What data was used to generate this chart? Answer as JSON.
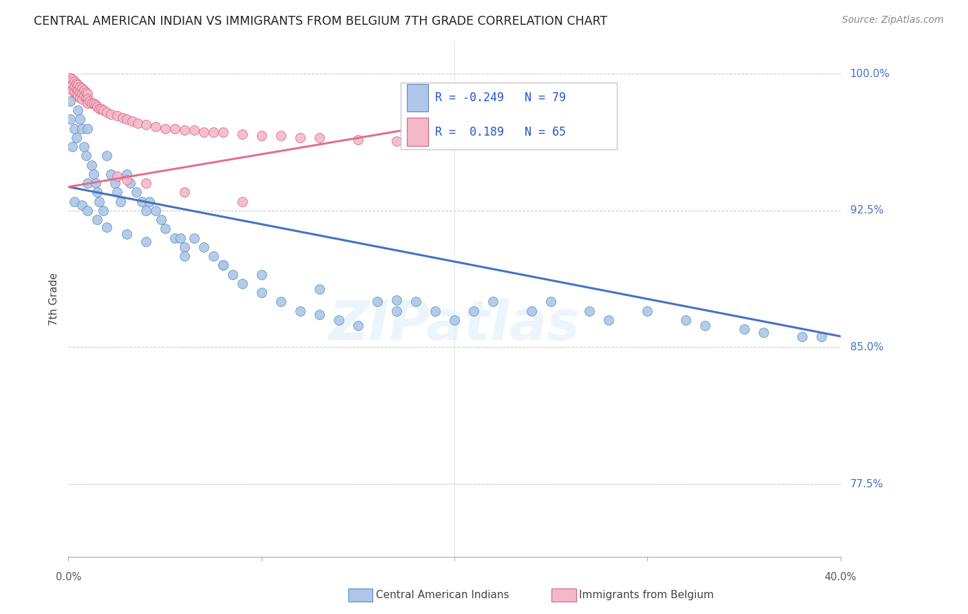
{
  "title": "CENTRAL AMERICAN INDIAN VS IMMIGRANTS FROM BELGIUM 7TH GRADE CORRELATION CHART",
  "source": "Source: ZipAtlas.com",
  "ylabel": "7th Grade",
  "ytick_labels": [
    "100.0%",
    "92.5%",
    "85.0%",
    "77.5%"
  ],
  "ytick_values": [
    1.0,
    0.925,
    0.85,
    0.775
  ],
  "legend_blue_label": "Central American Indians",
  "legend_pink_label": "Immigrants from Belgium",
  "R_blue": -0.249,
  "N_blue": 79,
  "R_pink": 0.189,
  "N_pink": 65,
  "blue_color": "#aec6e8",
  "pink_color": "#f4b8c8",
  "blue_edge_color": "#5b8db8",
  "pink_edge_color": "#d46080",
  "blue_line_color": "#4472c4",
  "pink_line_color": "#e07090",
  "watermark": "ZIPatlas",
  "xmin": 0.0,
  "xmax": 0.4,
  "ymin": 0.735,
  "ymax": 1.018,
  "blue_trendline_x": [
    0.0,
    0.4
  ],
  "blue_trendline_y": [
    0.938,
    0.856
  ],
  "pink_trendline_x": [
    0.0,
    0.19
  ],
  "pink_trendline_y": [
    0.938,
    0.972
  ],
  "blue_scatter_x": [
    0.001,
    0.001,
    0.002,
    0.002,
    0.003,
    0.003,
    0.004,
    0.005,
    0.006,
    0.007,
    0.008,
    0.009,
    0.01,
    0.01,
    0.012,
    0.013,
    0.014,
    0.015,
    0.016,
    0.018,
    0.02,
    0.022,
    0.024,
    0.025,
    0.027,
    0.03,
    0.032,
    0.035,
    0.038,
    0.04,
    0.042,
    0.045,
    0.048,
    0.05,
    0.055,
    0.058,
    0.06,
    0.065,
    0.07,
    0.075,
    0.08,
    0.085,
    0.09,
    0.1,
    0.11,
    0.12,
    0.13,
    0.14,
    0.15,
    0.16,
    0.17,
    0.18,
    0.19,
    0.2,
    0.22,
    0.24,
    0.25,
    0.27,
    0.3,
    0.32,
    0.33,
    0.35,
    0.36,
    0.38,
    0.39,
    0.003,
    0.007,
    0.01,
    0.015,
    0.02,
    0.03,
    0.04,
    0.06,
    0.08,
    0.1,
    0.13,
    0.17,
    0.21,
    0.28
  ],
  "blue_scatter_y": [
    0.985,
    0.975,
    0.995,
    0.96,
    0.99,
    0.97,
    0.965,
    0.98,
    0.975,
    0.97,
    0.96,
    0.955,
    0.97,
    0.94,
    0.95,
    0.945,
    0.94,
    0.935,
    0.93,
    0.925,
    0.955,
    0.945,
    0.94,
    0.935,
    0.93,
    0.945,
    0.94,
    0.935,
    0.93,
    0.925,
    0.93,
    0.925,
    0.92,
    0.915,
    0.91,
    0.91,
    0.905,
    0.91,
    0.905,
    0.9,
    0.895,
    0.89,
    0.885,
    0.88,
    0.875,
    0.87,
    0.868,
    0.865,
    0.862,
    0.875,
    0.87,
    0.875,
    0.87,
    0.865,
    0.875,
    0.87,
    0.875,
    0.87,
    0.87,
    0.865,
    0.862,
    0.86,
    0.858,
    0.856,
    0.856,
    0.93,
    0.928,
    0.925,
    0.92,
    0.916,
    0.912,
    0.908,
    0.9,
    0.895,
    0.89,
    0.882,
    0.876,
    0.87,
    0.865
  ],
  "pink_scatter_x": [
    0.001,
    0.001,
    0.001,
    0.002,
    0.002,
    0.002,
    0.003,
    0.003,
    0.003,
    0.004,
    0.004,
    0.004,
    0.005,
    0.005,
    0.005,
    0.006,
    0.006,
    0.006,
    0.007,
    0.007,
    0.007,
    0.008,
    0.008,
    0.009,
    0.009,
    0.01,
    0.01,
    0.01,
    0.011,
    0.012,
    0.013,
    0.014,
    0.015,
    0.016,
    0.017,
    0.018,
    0.02,
    0.022,
    0.025,
    0.028,
    0.03,
    0.033,
    0.036,
    0.04,
    0.045,
    0.05,
    0.055,
    0.06,
    0.065,
    0.07,
    0.075,
    0.08,
    0.09,
    0.1,
    0.11,
    0.12,
    0.13,
    0.15,
    0.17,
    0.19,
    0.025,
    0.03,
    0.04,
    0.06,
    0.09
  ],
  "pink_scatter_y": [
    0.998,
    0.995,
    0.993,
    0.997,
    0.994,
    0.991,
    0.996,
    0.993,
    0.99,
    0.995,
    0.992,
    0.989,
    0.994,
    0.991,
    0.988,
    0.993,
    0.99,
    0.987,
    0.992,
    0.989,
    0.986,
    0.991,
    0.988,
    0.99,
    0.987,
    0.989,
    0.986,
    0.984,
    0.985,
    0.984,
    0.984,
    0.983,
    0.982,
    0.981,
    0.981,
    0.98,
    0.979,
    0.978,
    0.977,
    0.976,
    0.975,
    0.974,
    0.973,
    0.972,
    0.971,
    0.97,
    0.97,
    0.969,
    0.969,
    0.968,
    0.968,
    0.968,
    0.967,
    0.966,
    0.966,
    0.965,
    0.965,
    0.964,
    0.963,
    0.963,
    0.944,
    0.942,
    0.94,
    0.935,
    0.93
  ]
}
